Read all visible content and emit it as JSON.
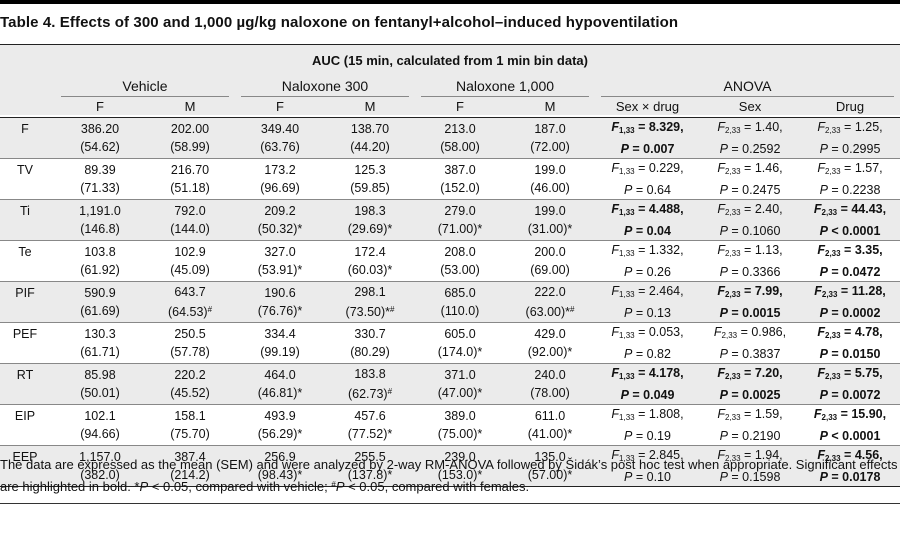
{
  "title": "Table 4. Effects of 300 and 1,000 µg/kg naloxone on fentanyl+alcohol–induced hypoventilation",
  "auc_header": "AUC (15 min, calculated from 1 min bin data)",
  "groups": {
    "vehicle": "Vehicle",
    "nal300": "Naloxone 300",
    "nal1000": "Naloxone 1,000",
    "anova": "ANOVA"
  },
  "subheaders": {
    "f": "F",
    "m": "M",
    "sexdrug": "Sex × drug",
    "sex": "Sex",
    "drug": "Drug"
  },
  "rows": [
    {
      "label": "F",
      "cells": [
        [
          "386.20",
          "(54.62)"
        ],
        [
          "202.00",
          "(58.99)"
        ],
        [
          "349.40",
          "(63.76)"
        ],
        [
          "138.70",
          "(44.20)"
        ],
        [
          "213.0",
          "(58.00)"
        ],
        [
          "187.0",
          "(72.00)"
        ]
      ],
      "stats": [
        {
          "df": "1,33",
          "f": "8.329,",
          "p": "0.007",
          "bold": true
        },
        {
          "df": "2,33",
          "f": "1.40,",
          "p": "0.2592",
          "bold": false
        },
        {
          "df": "2,33",
          "f": "1.25,",
          "p": "0.2995",
          "bold": false
        }
      ]
    },
    {
      "label": "TV",
      "cells": [
        [
          "89.39",
          "(71.33)"
        ],
        [
          "216.70",
          "(51.18)"
        ],
        [
          "173.2",
          "(96.69)"
        ],
        [
          "125.3",
          "(59.85)"
        ],
        [
          "387.0",
          "(152.0)"
        ],
        [
          "199.0",
          "(46.00)"
        ]
      ],
      "stats": [
        {
          "df": "1,33",
          "f": "0.229,",
          "p": "0.64",
          "bold": false
        },
        {
          "df": "2,33",
          "f": "1.46,",
          "p": "0.2475",
          "bold": false
        },
        {
          "df": "2,33",
          "f": "1.57,",
          "p": "0.2238",
          "bold": false
        }
      ]
    },
    {
      "label": "Ti",
      "cells": [
        [
          "1,191.0",
          "(146.8)"
        ],
        [
          "792.0",
          "(144.0)"
        ],
        [
          "209.2",
          "(50.32)*"
        ],
        [
          "198.3",
          "(29.69)*"
        ],
        [
          "279.0",
          "(71.00)*"
        ],
        [
          "199.0",
          "(31.00)*"
        ]
      ],
      "stats": [
        {
          "df": "1,33",
          "f": "4.488,",
          "p": "0.04",
          "bold": true
        },
        {
          "df": "2,33",
          "f": "2.40,",
          "p": "0.1060",
          "bold": false
        },
        {
          "df": "2,33",
          "f": "44.43,",
          "p": "< 0.0001",
          "bold": true
        }
      ]
    },
    {
      "label": "Te",
      "cells": [
        [
          "103.8",
          "(61.92)"
        ],
        [
          "102.9",
          "(45.09)"
        ],
        [
          "327.0",
          "(53.91)*"
        ],
        [
          "172.4",
          "(60.03)*"
        ],
        [
          "208.0",
          "(53.00)"
        ],
        [
          "200.0",
          "(69.00)"
        ]
      ],
      "stats": [
        {
          "df": "1,33",
          "f": "1.332,",
          "p": "0.26",
          "bold": false
        },
        {
          "df": "2,33",
          "f": "1.13,",
          "p": "0.3366",
          "bold": false
        },
        {
          "df": "2,33",
          "f": "3.35,",
          "p": "0.0472",
          "bold": true
        }
      ]
    },
    {
      "label": "PIF",
      "cells": [
        [
          "590.9",
          "(61.69)"
        ],
        [
          "643.7",
          "(64.53)#"
        ],
        [
          "190.6",
          "(76.76)*"
        ],
        [
          "298.1",
          "(73.50)*#"
        ],
        [
          "685.0",
          "(110.0)"
        ],
        [
          "222.0",
          "(63.00)*#"
        ]
      ],
      "stats": [
        {
          "df": "1,33",
          "f": "2.464,",
          "p": "0.13",
          "bold": false
        },
        {
          "df": "2,33",
          "f": "7.99,",
          "p": "0.0015",
          "bold": true
        },
        {
          "df": "2,33",
          "f": "11.28,",
          "p": "0.0002",
          "bold": true
        }
      ]
    },
    {
      "label": "PEF",
      "cells": [
        [
          "130.3",
          "(61.71)"
        ],
        [
          "250.5",
          "(57.78)"
        ],
        [
          "334.4",
          "(99.19)"
        ],
        [
          "330.7",
          "(80.29)"
        ],
        [
          "605.0",
          "(174.0)*"
        ],
        [
          "429.0",
          "(92.00)*"
        ]
      ],
      "stats": [
        {
          "df": "1,33",
          "f": "0.053,",
          "p": "0.82",
          "bold": false
        },
        {
          "df": "2,33",
          "f": "0.986,",
          "p": "0.3837",
          "bold": false
        },
        {
          "df": "2,33",
          "f": "4.78,",
          "p": "0.0150",
          "bold": true
        }
      ]
    },
    {
      "label": "RT",
      "cells": [
        [
          "85.98",
          "(50.01)"
        ],
        [
          "220.2",
          "(45.52)"
        ],
        [
          "464.0",
          "(46.81)*"
        ],
        [
          "183.8",
          "(62.73)#"
        ],
        [
          "371.0",
          "(47.00)*"
        ],
        [
          "240.0",
          "(78.00)"
        ]
      ],
      "stats": [
        {
          "df": "1,33",
          "f": "4.178,",
          "p": "0.049",
          "bold": true
        },
        {
          "df": "2,33",
          "f": "7.20,",
          "p": "0.0025",
          "bold": true
        },
        {
          "df": "2,33",
          "f": "5.75,",
          "p": "0.0072",
          "bold": true
        }
      ]
    },
    {
      "label": "EIP",
      "cells": [
        [
          "102.1",
          "(94.66)"
        ],
        [
          "158.1",
          "(75.70)"
        ],
        [
          "493.9",
          "(56.29)*"
        ],
        [
          "457.6",
          "(77.52)*"
        ],
        [
          "389.0",
          "(75.00)*"
        ],
        [
          "611.0",
          "(41.00)*"
        ]
      ],
      "stats": [
        {
          "df": "1,33",
          "f": "1.808,",
          "p": "0.19",
          "bold": false
        },
        {
          "df": "2,33",
          "f": "1.59,",
          "p": "0.2190",
          "bold": false
        },
        {
          "df": "2,33",
          "f": "15.90,",
          "p": "< 0.0001",
          "bold": true
        }
      ]
    },
    {
      "label": "EEP",
      "cells": [
        [
          "1,157.0",
          "(382.0)"
        ],
        [
          "387.4",
          "(214.2)"
        ],
        [
          "256.9",
          "(98.43)*"
        ],
        [
          "255.5",
          "(137.8)*"
        ],
        [
          "239.0",
          "(153.0)*"
        ],
        [
          "135.0",
          "(57.00)*"
        ]
      ],
      "stats": [
        {
          "df": "1,33",
          "f": "2.845,",
          "p": "0.10",
          "bold": false
        },
        {
          "df": "2,33",
          "f": "1.94,",
          "p": "0.1598",
          "bold": false
        },
        {
          "df": "2,33",
          "f": "4.56,",
          "p": "0.0178",
          "bold": true
        }
      ]
    }
  ],
  "footnote": {
    "line1": "The data are expressed as the mean (SEM) and were analyzed by 2-way RM-ANOVA followed by Šidák’s post hoc test when appropriate. Significant effects",
    "line2": "are highlighted in bold. *P < 0.05, compared with vehicle; #P < 0.05, compared with females."
  }
}
